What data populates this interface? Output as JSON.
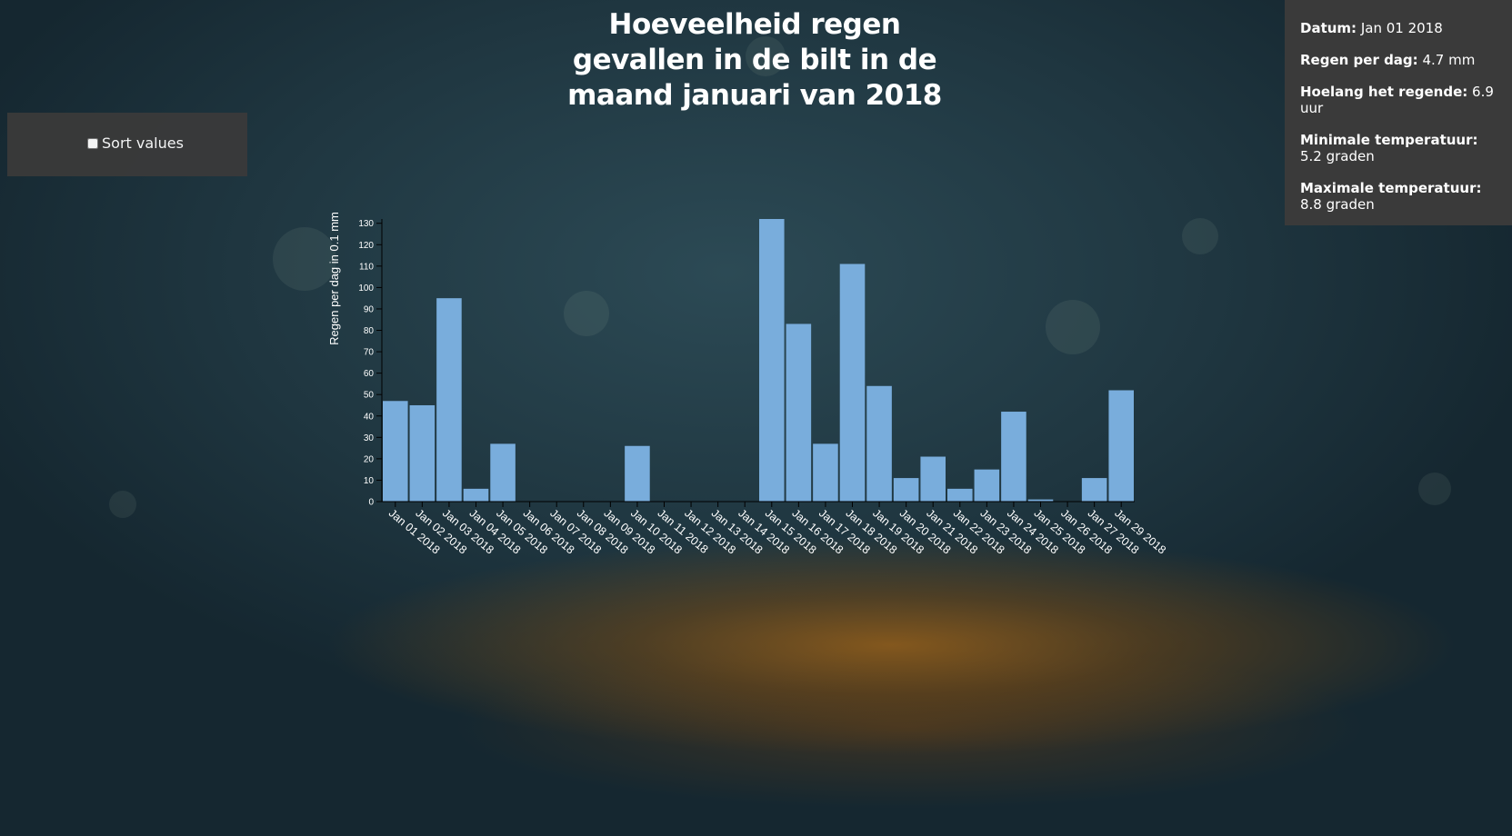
{
  "title": "Hoeveelheid regen gevallen in de bilt in de maand januari van 2018",
  "title_lines": [
    "Hoeveelheid regen",
    "gevallen in de bilt in de",
    "maand januari van 2018"
  ],
  "controls": {
    "sort_label": "Sort values",
    "sort_checked": false
  },
  "info": {
    "datum_label": "Datum:",
    "datum_value": "Jan 01 2018",
    "regen_label": "Regen per dag:",
    "regen_value": "4.7 mm",
    "hoelang_label": "Hoelang het regende:",
    "hoelang_value": "6.9 uur",
    "min_label": "Minimale temperatuur:",
    "min_value": "5.2 graden",
    "max_label": "Maximale temperatuur:",
    "max_value": "8.8 graden"
  },
  "colors": {
    "bar": "#79addc",
    "axis": "#000000",
    "panel": "#3a3a3a"
  },
  "chart_data": {
    "type": "bar",
    "title": "Hoeveelheid regen gevallen in de bilt in de maand januari van 2018",
    "xlabel": "",
    "ylabel": "Regen per dag in 0.1 mm",
    "ylim": [
      0,
      132
    ],
    "yticks": [
      0,
      10,
      20,
      30,
      40,
      50,
      60,
      70,
      80,
      90,
      100,
      110,
      120,
      130
    ],
    "grid": false,
    "categories": [
      "Jan 01 2018",
      "Jan 02 2018",
      "Jan 03 2018",
      "Jan 04 2018",
      "Jan 05 2018",
      "Jan 06 2018",
      "Jan 07 2018",
      "Jan 08 2018",
      "Jan 09 2018",
      "Jan 10 2018",
      "Jan 11 2018",
      "Jan 12 2018",
      "Jan 13 2018",
      "Jan 14 2018",
      "Jan 15 2018",
      "Jan 16 2018",
      "Jan 17 2018",
      "Jan 18 2018",
      "Jan 19 2018",
      "Jan 20 2018",
      "Jan 21 2018",
      "Jan 22 2018",
      "Jan 23 2018",
      "Jan 24 2018",
      "Jan 25 2018",
      "Jan 26 2018",
      "Jan 27 2018",
      "Jan 29 2018"
    ],
    "values": [
      47,
      45,
      95,
      6,
      27,
      0,
      0,
      0,
      0,
      26,
      0,
      0,
      0,
      0,
      132,
      83,
      27,
      111,
      54,
      11,
      21,
      6,
      15,
      42,
      1,
      0,
      11,
      52
    ]
  }
}
